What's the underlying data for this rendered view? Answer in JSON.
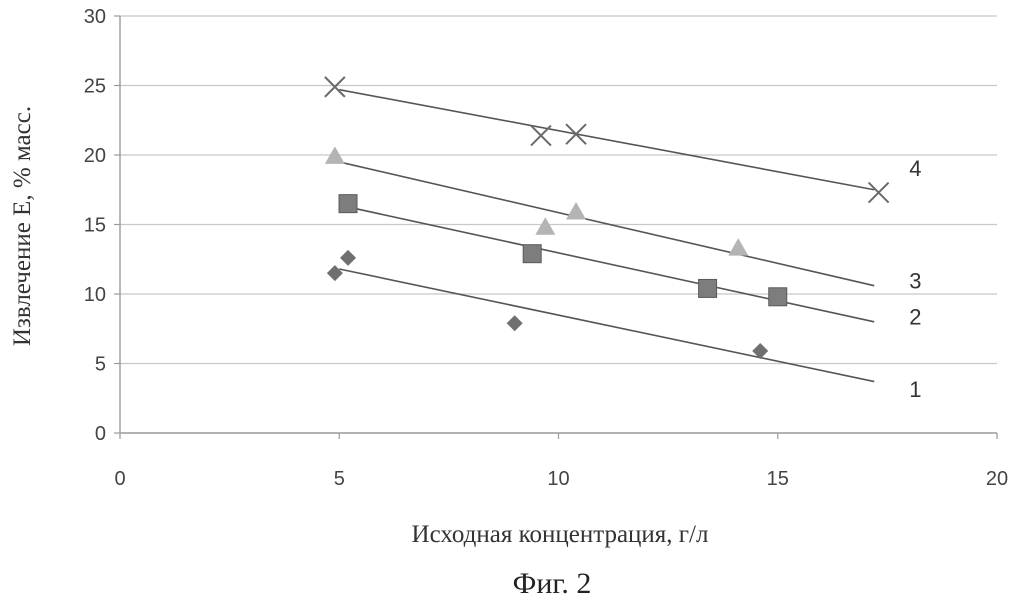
{
  "caption": "Фиг. 2",
  "chart_data": {
    "type": "scatter",
    "xlabel": "Исходная концентрация, г/л",
    "ylabel": "Извлечение Е, % масс.",
    "xlim": [
      0,
      20
    ],
    "ylim": [
      0,
      30
    ],
    "x_ticks": [
      "0",
      "5",
      "10",
      "15",
      "20"
    ],
    "y_ticks": [
      "0",
      "5",
      "10",
      "15",
      "20",
      "25",
      "30"
    ],
    "grid": "horizontal",
    "legend": "none",
    "series": [
      {
        "name": "1",
        "marker": "diamond",
        "color": "#6f6f6f",
        "points": [
          [
            4.9,
            11.5
          ],
          [
            5.2,
            12.6
          ],
          [
            9.0,
            7.9
          ],
          [
            14.6,
            5.9
          ]
        ],
        "trendline": [
          [
            5.0,
            11.8
          ],
          [
            17.2,
            3.7
          ]
        ]
      },
      {
        "name": "2",
        "marker": "square",
        "color": "#7d7d7d",
        "points": [
          [
            5.2,
            16.5
          ],
          [
            9.4,
            12.9
          ],
          [
            13.4,
            10.4
          ],
          [
            15.0,
            9.8
          ]
        ],
        "trendline": [
          [
            5.0,
            16.4
          ],
          [
            17.2,
            8.0
          ]
        ]
      },
      {
        "name": "3",
        "marker": "triangle",
        "color": "#b4b4b4",
        "points": [
          [
            4.9,
            19.9
          ],
          [
            9.7,
            14.8
          ],
          [
            10.4,
            15.9
          ],
          [
            14.1,
            13.3
          ]
        ],
        "trendline": [
          [
            5.0,
            19.5
          ],
          [
            17.2,
            10.6
          ]
        ]
      },
      {
        "name": "4",
        "marker": "x",
        "color": "#6a6a6a",
        "points": [
          [
            4.9,
            24.9
          ],
          [
            9.6,
            21.4
          ],
          [
            10.4,
            21.5
          ],
          [
            17.3,
            17.3
          ]
        ],
        "trendline": [
          [
            5.0,
            24.7
          ],
          [
            17.2,
            17.5
          ]
        ]
      }
    ],
    "curve_labels": [
      {
        "series": "1",
        "text": "1",
        "x": 18.0,
        "y": 2.6
      },
      {
        "series": "2",
        "text": "2",
        "x": 18.0,
        "y": 7.8
      },
      {
        "series": "3",
        "text": "3",
        "x": 18.0,
        "y": 10.4
      },
      {
        "series": "4",
        "text": "4",
        "x": 18.0,
        "y": 18.5
      }
    ]
  }
}
